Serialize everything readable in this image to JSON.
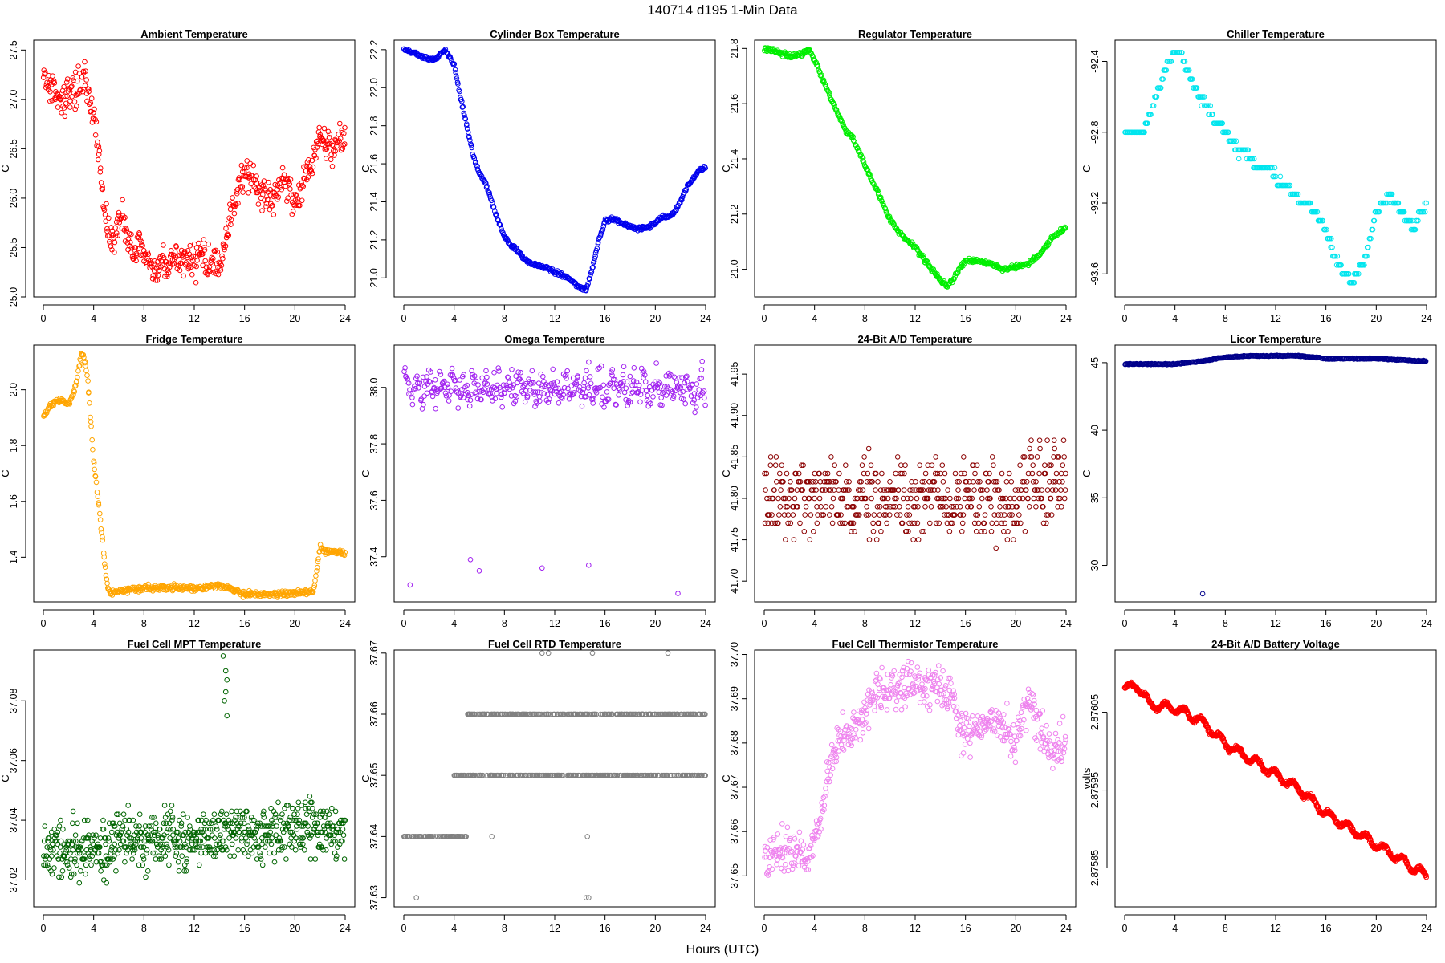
{
  "figure": {
    "title": "140714   d195   1-Min Data",
    "xlabel": "Hours (UTC)"
  },
  "chart_data": [
    {
      "id": "ambient",
      "type": "scatter",
      "title": "Ambient Temperature",
      "ylabel": "C",
      "color": "#ff0000",
      "xlim": [
        0,
        24
      ],
      "xticks": [
        0,
        4,
        8,
        12,
        16,
        20,
        24
      ],
      "ylim": [
        25.0,
        27.6
      ],
      "yticks": [
        25.0,
        25.5,
        26.0,
        26.5,
        27.0,
        27.5
      ],
      "ytick_labels": [
        "25.0",
        "25.5",
        "26.0",
        "26.5",
        "27.0",
        "27.5"
      ],
      "x": [
        0,
        0.5,
        1,
        1.5,
        2,
        2.5,
        3,
        3.3,
        3.6,
        4,
        4.3,
        4.6,
        5,
        5.3,
        5.6,
        6,
        6.4,
        6.8,
        7.2,
        7.6,
        8,
        8.5,
        9,
        9.5,
        10,
        10.5,
        11,
        11.5,
        12,
        12.5,
        13,
        13.5,
        14,
        14.5,
        15,
        15.5,
        16,
        16.5,
        17,
        17.5,
        18,
        18.5,
        19,
        19.5,
        20,
        20.5,
        21,
        21.5,
        22,
        22.5,
        23,
        23.5,
        24
      ],
      "y": [
        27.25,
        27.15,
        27.05,
        27.0,
        27.05,
        27.1,
        27.2,
        27.3,
        27.0,
        26.85,
        26.6,
        26.2,
        25.8,
        25.6,
        25.55,
        25.75,
        25.85,
        25.55,
        25.45,
        25.5,
        25.4,
        25.3,
        25.25,
        25.35,
        25.3,
        25.35,
        25.4,
        25.4,
        25.35,
        25.45,
        25.35,
        25.4,
        25.3,
        25.6,
        25.9,
        26.1,
        26.2,
        26.15,
        26.1,
        26.05,
        26.0,
        26.05,
        26.2,
        26.15,
        25.9,
        26.05,
        26.3,
        26.4,
        26.6,
        26.55,
        26.5,
        26.6,
        26.55
      ],
      "noise": 0.12,
      "n": 540
    },
    {
      "id": "cylinder",
      "type": "scatter",
      "title": "Cylinder Box Temperature",
      "ylabel": "C",
      "color": "#0000ee",
      "xlim": [
        0,
        24
      ],
      "xticks": [
        0,
        4,
        8,
        12,
        16,
        20,
        24
      ],
      "ylim": [
        20.9,
        22.25
      ],
      "yticks": [
        21.0,
        21.2,
        21.4,
        21.6,
        21.8,
        22.0,
        22.2
      ],
      "ytick_labels": [
        "21.0",
        "21.2",
        "21.4",
        "21.6",
        "21.8",
        "22.0",
        "22.2"
      ],
      "x": [
        0,
        1,
        2,
        2.5,
        3,
        3.3,
        4,
        4.5,
        5,
        5.5,
        6,
        6.5,
        7,
        7.5,
        8,
        8.5,
        9,
        9.5,
        10,
        10.5,
        11,
        11.5,
        12,
        12.5,
        13,
        13.5,
        14,
        14.5,
        15,
        15.5,
        16,
        16.5,
        17,
        17.5,
        18,
        18.5,
        19,
        19.5,
        20,
        20.5,
        21,
        21.5,
        22,
        22.5,
        23,
        23.5,
        24
      ],
      "y": [
        22.2,
        22.18,
        22.15,
        22.15,
        22.18,
        22.2,
        22.12,
        21.95,
        21.8,
        21.65,
        21.55,
        21.5,
        21.4,
        21.3,
        21.22,
        21.17,
        21.15,
        21.1,
        21.08,
        21.07,
        21.06,
        21.05,
        21.03,
        21.02,
        21.0,
        20.98,
        20.95,
        20.94,
        21.05,
        21.2,
        21.3,
        21.31,
        21.3,
        21.28,
        21.27,
        21.26,
        21.26,
        21.27,
        21.29,
        21.32,
        21.32,
        21.34,
        21.4,
        21.48,
        21.52,
        21.57,
        21.58
      ],
      "noise": 0.007,
      "n": 480
    },
    {
      "id": "regulator",
      "type": "scatter",
      "title": "Regulator Temperature",
      "ylabel": "C",
      "color": "#00ee00",
      "xlim": [
        0,
        24
      ],
      "xticks": [
        0,
        4,
        8,
        12,
        16,
        20,
        24
      ],
      "ylim": [
        20.9,
        21.83
      ],
      "yticks": [
        21.0,
        21.2,
        21.4,
        21.6,
        21.8
      ],
      "ytick_labels": [
        "21.0",
        "21.2",
        "21.4",
        "21.6",
        "21.8"
      ],
      "x": [
        0,
        1,
        2,
        3,
        3.5,
        4,
        5,
        6,
        6.5,
        7,
        8,
        9,
        10,
        11,
        12,
        13,
        14,
        14.5,
        15,
        15.5,
        16,
        17,
        18,
        19,
        20,
        21,
        22,
        23,
        24
      ],
      "y": [
        21.8,
        21.79,
        21.77,
        21.78,
        21.8,
        21.76,
        21.65,
        21.55,
        21.5,
        21.48,
        21.38,
        21.28,
        21.18,
        21.12,
        21.08,
        21.02,
        20.96,
        20.94,
        20.96,
        21.0,
        21.03,
        21.03,
        21.02,
        21.0,
        21.01,
        21.02,
        21.06,
        21.12,
        21.15
      ],
      "noise": 0.006,
      "n": 480
    },
    {
      "id": "chiller",
      "type": "scatter",
      "title": "Chiller Temperature",
      "ylabel": "C",
      "color": "#00e5ee",
      "xlim": [
        0,
        24
      ],
      "xticks": [
        0,
        4,
        8,
        12,
        16,
        20,
        24
      ],
      "ylim": [
        -93.73,
        -92.28
      ],
      "yticks": [
        -93.6,
        -93.2,
        -92.8,
        -92.4
      ],
      "ytick_labels": [
        "-93.6",
        "-93.2",
        "-92.8",
        "-92.4"
      ],
      "x": [
        0,
        0.5,
        1,
        1.5,
        2,
        2.5,
        3,
        3.5,
        4,
        4.5,
        5,
        5.5,
        6,
        6.5,
        7,
        7.5,
        8,
        8.5,
        9,
        9.5,
        10,
        10.5,
        11,
        11.5,
        12,
        12.5,
        13,
        13.5,
        14,
        14.5,
        15,
        15.5,
        16,
        16.5,
        17,
        17.5,
        18,
        18.5,
        19,
        19.5,
        20,
        20.5,
        21,
        21.5,
        22,
        22.5,
        23,
        23.5,
        24
      ],
      "y": [
        -92.8,
        -92.8,
        -92.8,
        -92.8,
        -92.7,
        -92.6,
        -92.5,
        -92.4,
        -92.35,
        -92.35,
        -92.45,
        -92.55,
        -92.6,
        -92.65,
        -92.7,
        -92.75,
        -92.8,
        -92.85,
        -92.9,
        -92.9,
        -92.95,
        -93.0,
        -93.0,
        -93.0,
        -93.05,
        -93.1,
        -93.1,
        -93.15,
        -93.2,
        -93.2,
        -93.25,
        -93.3,
        -93.35,
        -93.45,
        -93.55,
        -93.6,
        -93.65,
        -93.6,
        -93.55,
        -93.4,
        -93.25,
        -93.2,
        -93.15,
        -93.2,
        -93.25,
        -93.3,
        -93.35,
        -93.25,
        -93.2
      ],
      "noise": 0.015,
      "quantum": 0.05,
      "n": 360
    },
    {
      "id": "fridge",
      "type": "scatter",
      "title": "Fridge Temperature",
      "ylabel": "C",
      "color": "#ffa500",
      "xlim": [
        0,
        24
      ],
      "xticks": [
        0,
        4,
        8,
        12,
        16,
        20,
        24
      ],
      "ylim": [
        1.24,
        2.16
      ],
      "yticks": [
        1.4,
        1.6,
        1.8,
        2.0
      ],
      "ytick_labels": [
        "1.4",
        "1.6",
        "1.8",
        "2.0"
      ],
      "x": [
        0,
        0.5,
        1,
        1.5,
        2,
        2.5,
        3,
        3.2,
        3.5,
        4,
        4.5,
        5,
        5.3,
        6,
        8,
        10,
        12,
        14,
        15,
        16,
        18,
        20,
        21.5,
        22,
        22.5,
        23,
        24
      ],
      "y": [
        1.9,
        1.94,
        1.96,
        1.96,
        1.95,
        2.0,
        2.12,
        2.13,
        2.05,
        1.75,
        1.55,
        1.32,
        1.27,
        1.28,
        1.29,
        1.29,
        1.29,
        1.3,
        1.28,
        1.27,
        1.27,
        1.27,
        1.28,
        1.44,
        1.42,
        1.42,
        1.41
      ],
      "noise": 0.008,
      "n": 480
    },
    {
      "id": "omega",
      "type": "scatter",
      "title": "Omega Temperature",
      "ylabel": "C",
      "color": "#a020f0",
      "xlim": [
        0,
        24
      ],
      "xticks": [
        0,
        4,
        8,
        12,
        16,
        20,
        24
      ],
      "ylim": [
        37.24,
        38.15
      ],
      "yticks": [
        37.4,
        37.6,
        37.8,
        38.0
      ],
      "ytick_labels": [
        "37.4",
        "37.6",
        "37.8",
        "38.0"
      ],
      "x": [
        0,
        24
      ],
      "y": [
        38.0,
        38.0
      ],
      "noise": 0.04,
      "wave_amp": 0.03,
      "wave_period": 0.9,
      "n": 420,
      "outliers": [
        [
          0.5,
          37.3
        ],
        [
          5.3,
          37.39
        ],
        [
          6,
          37.35
        ],
        [
          11,
          37.36
        ],
        [
          14.7,
          37.37
        ],
        [
          21.8,
          37.27
        ]
      ]
    },
    {
      "id": "adtemp",
      "type": "scatter",
      "title": "24-Bit A/D Temperature",
      "ylabel": "C",
      "color": "#8b0000",
      "xlim": [
        0,
        24
      ],
      "xticks": [
        0,
        4,
        8,
        12,
        16,
        20,
        24
      ],
      "ylim": [
        41.675,
        41.985
      ],
      "yticks": [
        41.7,
        41.75,
        41.8,
        41.85,
        41.9,
        41.95
      ],
      "ytick_labels": [
        "41.70",
        "41.75",
        "41.80",
        "41.85",
        "41.90",
        "41.95"
      ],
      "x": [
        0,
        20,
        21,
        22,
        23,
        24
      ],
      "y": [
        41.8,
        41.8,
        41.81,
        41.82,
        41.82,
        41.82
      ],
      "noise": 0.035,
      "quantum": 0.01,
      "n": 520
    },
    {
      "id": "licor",
      "type": "scatter",
      "title": "Licor Temperature",
      "ylabel": "C",
      "color": "#00008b",
      "xlim": [
        0,
        24
      ],
      "xticks": [
        0,
        4,
        8,
        12,
        16,
        20,
        24
      ],
      "ylim": [
        27.3,
        46.3
      ],
      "yticks": [
        30,
        35,
        40,
        45
      ],
      "ytick_labels": [
        "30",
        "35",
        "40",
        "45"
      ],
      "x": [
        0,
        2,
        4,
        6,
        8,
        10,
        12,
        14,
        16,
        18,
        20,
        22,
        24
      ],
      "y": [
        44.9,
        44.9,
        44.9,
        45.1,
        45.4,
        45.5,
        45.5,
        45.5,
        45.3,
        45.3,
        45.3,
        45.2,
        45.1
      ],
      "noise": 0.03,
      "n": 420,
      "outliers": [
        [
          6.2,
          27.9
        ]
      ]
    },
    {
      "id": "mpt",
      "type": "scatter",
      "title": "Fuel Cell MPT Temperature",
      "ylabel": "C",
      "color": "#006400",
      "xlim": [
        0,
        24
      ],
      "xticks": [
        0,
        4,
        8,
        12,
        16,
        20,
        24
      ],
      "ylim": [
        37.011,
        37.097
      ],
      "yticks": [
        37.02,
        37.04,
        37.06,
        37.08
      ],
      "ytick_labels": [
        "37.02",
        "37.04",
        "37.06",
        "37.08"
      ],
      "x": [
        0,
        4,
        8,
        12,
        16,
        20,
        24
      ],
      "y": [
        37.03,
        37.031,
        37.033,
        37.034,
        37.036,
        37.037,
        37.037
      ],
      "noise": 0.007,
      "quantum": 0.001,
      "n": 700,
      "outliers": [
        [
          14.3,
          37.095
        ],
        [
          14.5,
          37.09
        ],
        [
          14.6,
          37.087
        ],
        [
          14.5,
          37.083
        ],
        [
          14.4,
          37.08
        ],
        [
          14.6,
          37.075
        ]
      ]
    },
    {
      "id": "rtd",
      "type": "scatter",
      "title": "Fuel Cell RTD Temperature",
      "ylabel": "C",
      "color": "#808080",
      "xlim": [
        0,
        24
      ],
      "xticks": [
        0,
        4,
        8,
        12,
        16,
        20,
        24
      ],
      "ylim": [
        37.6285,
        37.6705
      ],
      "yticks": [
        37.63,
        37.64,
        37.65,
        37.66,
        37.67
      ],
      "ytick_labels": [
        "37.63",
        "37.64",
        "37.65",
        "37.66",
        "37.67"
      ],
      "levels": [
        [
          0,
          5,
          37.64
        ],
        [
          4,
          24,
          37.65
        ],
        [
          5,
          24,
          37.66
        ]
      ],
      "n": 600,
      "outliers": [
        [
          1,
          37.63
        ],
        [
          14.5,
          37.63
        ],
        [
          14.7,
          37.63
        ],
        [
          11,
          37.67
        ],
        [
          11.5,
          37.67
        ],
        [
          15,
          37.67
        ],
        [
          21,
          37.67
        ],
        [
          7,
          37.64
        ],
        [
          14.6,
          37.64
        ]
      ]
    },
    {
      "id": "thermistor",
      "type": "scatter",
      "title": "Fuel Cell Thermistor Temperature",
      "ylabel": "C",
      "color": "#ee82ee",
      "xlim": [
        0,
        24
      ],
      "xticks": [
        0,
        4,
        8,
        12,
        16,
        20,
        24
      ],
      "ylim": [
        37.643,
        37.701
      ],
      "yticks": [
        37.65,
        37.66,
        37.67,
        37.68,
        37.69,
        37.7
      ],
      "ytick_labels": [
        "37.65",
        "37.66",
        "37.67",
        "37.68",
        "37.69",
        "37.70"
      ],
      "x": [
        0,
        1,
        2,
        3,
        3.5,
        4,
        4.5,
        5,
        5.5,
        6,
        7,
        8,
        9,
        10,
        11,
        12,
        13,
        14,
        15,
        15.5,
        16,
        17,
        18,
        19,
        20,
        21,
        22,
        23,
        24
      ],
      "y": [
        37.654,
        37.655,
        37.656,
        37.655,
        37.652,
        37.66,
        37.663,
        37.672,
        37.677,
        37.682,
        37.682,
        37.686,
        37.692,
        37.691,
        37.693,
        37.694,
        37.693,
        37.692,
        37.69,
        37.684,
        37.682,
        37.684,
        37.686,
        37.684,
        37.68,
        37.69,
        37.683,
        37.678,
        37.682
      ],
      "noise": 0.0035,
      "n": 560
    },
    {
      "id": "battery",
      "type": "scatter",
      "title": "24-Bit A/D Battery Voltage",
      "ylabel": "volts",
      "color": "#ff0000",
      "xlim": [
        0,
        24
      ],
      "xticks": [
        0,
        4,
        8,
        12,
        16,
        20,
        24
      ],
      "ylim": [
        2.8758,
        2.87613
      ],
      "yticks": [
        2.87585,
        2.87595,
        2.87605
      ],
      "ytick_labels": [
        "2.87585",
        "2.87595",
        "2.87605"
      ],
      "x": [
        0,
        1,
        2,
        4,
        6,
        8,
        10,
        12,
        14,
        16,
        18,
        20,
        22,
        24
      ],
      "y": [
        2.87608,
        2.876085,
        2.87606,
        2.876055,
        2.87604,
        2.87601,
        2.87599,
        2.87597,
        2.87595,
        2.87592,
        2.8759,
        2.87588,
        2.87586,
        2.87584
      ],
      "noise": 2e-06,
      "wave_amp": 5e-06,
      "wave_period": 1.45,
      "n": 900
    }
  ]
}
